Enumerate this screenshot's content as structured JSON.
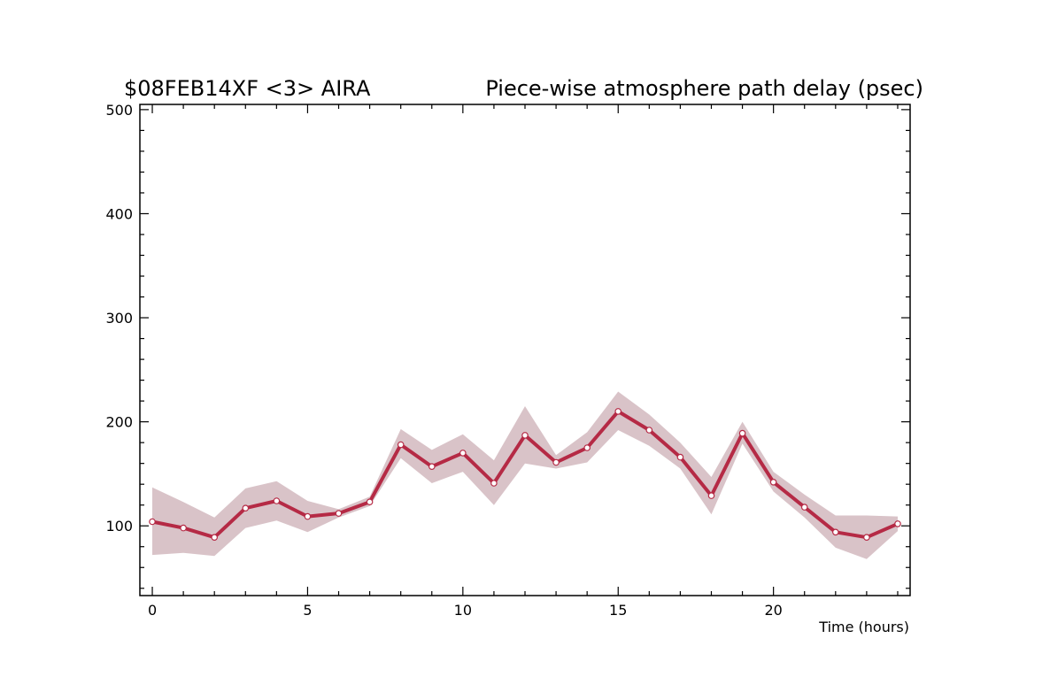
{
  "chart_data": {
    "type": "line",
    "title_left": "$08FEB14XF <3>  AIRA",
    "title_right": "Piece-wise atmosphere path delay (psec)",
    "xlabel": "Time (hours)",
    "ylabel": "",
    "xlim": [
      -0.4,
      24.4
    ],
    "ylim": [
      33,
      505
    ],
    "xticks": [
      0,
      5,
      10,
      15,
      20
    ],
    "yticks": [
      100,
      200,
      300,
      400,
      500
    ],
    "grid": false,
    "colors": {
      "line": "#b52a45",
      "band": "#d9c3c8",
      "marker_fill": "#ffffff"
    },
    "series": [
      {
        "x": [
          0,
          1,
          2,
          3,
          4,
          5,
          6,
          7,
          8,
          9,
          10,
          11,
          12,
          13,
          14,
          15,
          16,
          17,
          18,
          19,
          20,
          21,
          22,
          23,
          24
        ],
        "values": [
          104,
          98,
          89,
          117,
          124,
          109,
          112,
          123,
          178,
          157,
          170,
          141,
          187,
          161,
          175,
          210,
          192,
          166,
          129,
          189,
          142,
          118,
          94,
          89,
          102
        ],
        "upper": [
          137,
          123,
          108,
          136,
          143,
          124,
          116,
          128,
          193,
          173,
          188,
          163,
          215,
          168,
          190,
          229,
          207,
          180,
          147,
          200,
          152,
          130,
          110,
          110,
          109
        ],
        "lower": [
          72,
          74,
          71,
          98,
          105,
          94,
          108,
          119,
          165,
          141,
          152,
          120,
          160,
          155,
          161,
          192,
          177,
          155,
          111,
          179,
          133,
          108,
          79,
          68,
          95
        ]
      }
    ]
  }
}
